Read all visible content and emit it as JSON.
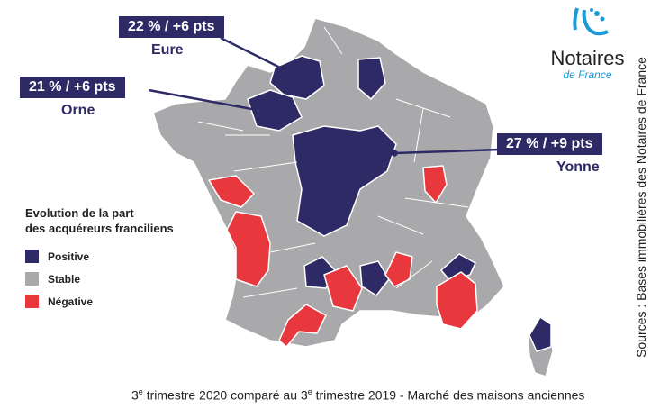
{
  "colors": {
    "positive": "#2e2a66",
    "stable": "#a9a9ab",
    "negative": "#e8383d",
    "brand": "#1a9ad6"
  },
  "logo": {
    "name": "Notaires",
    "sub": "de France"
  },
  "callouts": [
    {
      "value": "22 % / +6 pts",
      "department": "Eure"
    },
    {
      "value": "21 % / +6 pts",
      "department": "Orne"
    },
    {
      "value": "27 % / +9 pts",
      "department": "Yonne"
    }
  ],
  "legend": {
    "title_line1": "Evolution de la part",
    "title_line2": "des acquéreurs franciliens",
    "items": [
      {
        "label": "Positive",
        "color": "#2e2a66"
      },
      {
        "label": "Stable",
        "color": "#a9a9ab"
      },
      {
        "label": "Négative",
        "color": "#e8383d"
      }
    ]
  },
  "caption": {
    "p1": "3",
    "sup1": "e",
    "p2": " trimestre 2020 comparé au 3",
    "sup2": "e",
    "p3": " trimestre 2019 - Marché des maisons anciennes"
  },
  "source": "Sources : Bases immobilières des Notaires de France"
}
